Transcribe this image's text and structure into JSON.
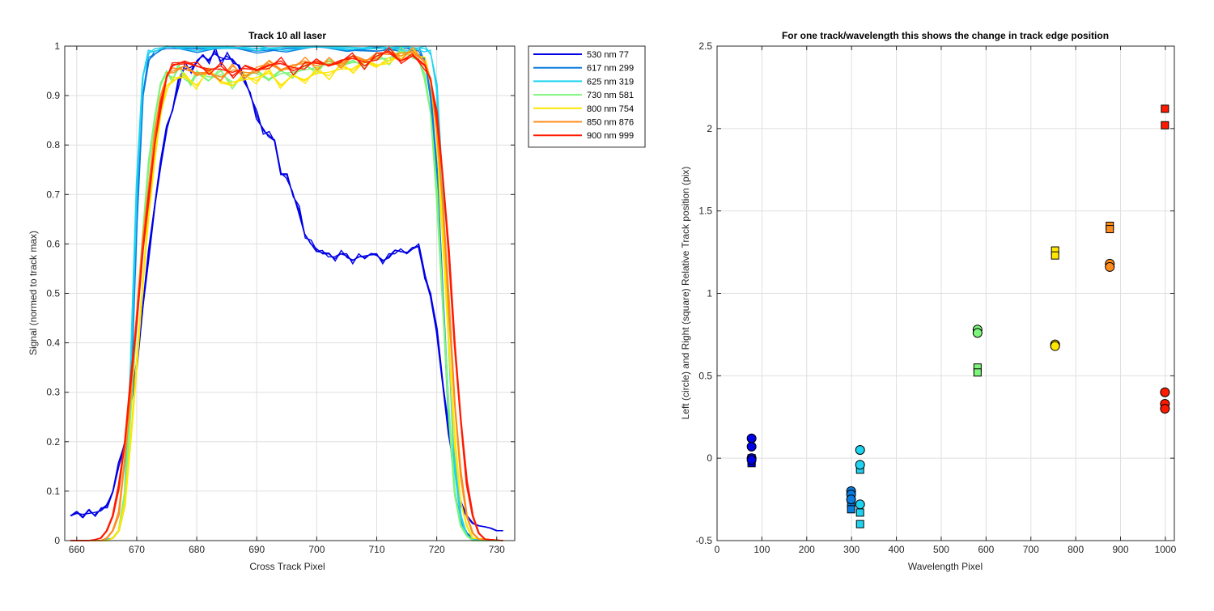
{
  "chart_data": [
    {
      "type": "line",
      "title": "Track 10  all laser",
      "xlabel": "Cross Track Pixel",
      "ylabel": "Signal (normed to track max)",
      "xlim": [
        658,
        733
      ],
      "ylim": [
        0,
        1
      ],
      "xticks": [
        660,
        670,
        680,
        690,
        700,
        710,
        720,
        730
      ],
      "yticks": [
        0,
        0.1,
        0.2,
        0.3,
        0.4,
        0.5,
        0.6,
        0.7,
        0.8,
        0.9,
        1
      ],
      "grid": true,
      "legend_position": "outside-top-right",
      "series": [
        {
          "name": "530 nm 77",
          "color": "#0000e6",
          "x": [
            659,
            660,
            661,
            662,
            663,
            664,
            665,
            666,
            667,
            668,
            669,
            670,
            671,
            672,
            673,
            674,
            675,
            676,
            677,
            678,
            679,
            680,
            681,
            682,
            683,
            684,
            685,
            686,
            687,
            688,
            689,
            690,
            691,
            692,
            693,
            694,
            695,
            696,
            697,
            698,
            699,
            700,
            701,
            702,
            703,
            704,
            705,
            706,
            707,
            708,
            709,
            710,
            711,
            712,
            713,
            714,
            715,
            716,
            717,
            718,
            719,
            720,
            721,
            722,
            723,
            724,
            725,
            726,
            727,
            728,
            729,
            730,
            731
          ],
          "y": [
            0.05,
            0.055,
            0.053,
            0.055,
            0.057,
            0.06,
            0.07,
            0.1,
            0.15,
            0.2,
            0.27,
            0.36,
            0.47,
            0.58,
            0.68,
            0.76,
            0.84,
            0.87,
            0.93,
            0.96,
            0.95,
            0.97,
            0.98,
            0.97,
            0.99,
            0.97,
            0.98,
            0.97,
            0.96,
            0.93,
            0.9,
            0.86,
            0.83,
            0.82,
            0.81,
            0.74,
            0.74,
            0.7,
            0.67,
            0.62,
            0.6,
            0.59,
            0.58,
            0.58,
            0.57,
            0.58,
            0.58,
            0.56,
            0.58,
            0.57,
            0.58,
            0.58,
            0.56,
            0.58,
            0.58,
            0.59,
            0.58,
            0.59,
            0.6,
            0.53,
            0.5,
            0.42,
            0.32,
            0.22,
            0.14,
            0.08,
            0.05,
            0.035,
            0.03,
            0.028,
            0.025,
            0.02,
            0.02
          ]
        },
        {
          "name": "617 nm 299",
          "color": "#0a7bdf",
          "x": [
            659,
            664,
            666,
            667,
            668,
            669,
            670,
            671,
            672,
            673,
            675,
            680,
            685,
            690,
            695,
            700,
            705,
            710,
            715,
            717,
            718,
            719,
            720,
            721,
            722,
            723,
            724,
            725,
            726,
            727,
            731
          ],
          "y": [
            0,
            0,
            0.005,
            0.02,
            0.08,
            0.3,
            0.65,
            0.9,
            0.97,
            0.99,
            0.995,
            0.995,
            0.998,
            0.99,
            0.995,
            0.998,
            0.995,
            0.99,
            0.995,
            0.99,
            0.97,
            0.9,
            0.75,
            0.5,
            0.25,
            0.1,
            0.04,
            0.015,
            0.005,
            0,
            0
          ]
        },
        {
          "name": "625 nm 319",
          "color": "#1fd3f0",
          "x": [
            659,
            664,
            666,
            667,
            668,
            669,
            670,
            671,
            672,
            673,
            675,
            680,
            685,
            690,
            695,
            700,
            705,
            710,
            715,
            718,
            719,
            720,
            721,
            722,
            723,
            724,
            725,
            726,
            727,
            731
          ],
          "y": [
            0,
            0,
            0.005,
            0.02,
            0.1,
            0.35,
            0.72,
            0.94,
            0.985,
            0.995,
            0.998,
            0.998,
            0.998,
            0.995,
            0.998,
            0.998,
            0.998,
            0.995,
            0.998,
            0.995,
            0.985,
            0.92,
            0.7,
            0.4,
            0.15,
            0.05,
            0.01,
            0.003,
            0,
            0
          ]
        },
        {
          "name": "730 nm 581",
          "color": "#7df47a",
          "x": [
            659,
            665,
            666,
            667,
            668,
            669,
            670,
            671,
            672,
            673,
            674,
            675,
            676,
            677,
            678,
            679,
            680,
            682,
            684,
            686,
            688,
            690,
            692,
            694,
            696,
            698,
            700,
            702,
            704,
            706,
            708,
            710,
            712,
            714,
            716,
            717,
            718,
            719,
            720,
            721,
            722,
            723,
            724,
            725,
            726,
            731
          ],
          "y": [
            0,
            0,
            0.005,
            0.02,
            0.1,
            0.26,
            0.45,
            0.62,
            0.76,
            0.86,
            0.92,
            0.95,
            0.93,
            0.96,
            0.94,
            0.92,
            0.95,
            0.93,
            0.95,
            0.92,
            0.94,
            0.95,
            0.93,
            0.95,
            0.94,
            0.96,
            0.95,
            0.97,
            0.96,
            0.97,
            0.96,
            0.98,
            0.97,
            0.99,
            0.98,
            0.97,
            0.94,
            0.86,
            0.7,
            0.48,
            0.26,
            0.1,
            0.03,
            0.01,
            0,
            0
          ]
        },
        {
          "name": "800 nm 754",
          "color": "#ffe600",
          "x": [
            659,
            665,
            666,
            667,
            668,
            669,
            670,
            671,
            672,
            673,
            674,
            675,
            676,
            678,
            680,
            682,
            684,
            686,
            688,
            690,
            692,
            694,
            696,
            698,
            700,
            702,
            704,
            706,
            708,
            710,
            712,
            714,
            716,
            718,
            719,
            720,
            721,
            722,
            723,
            724,
            725,
            726,
            731
          ],
          "y": [
            0,
            0,
            0.005,
            0.02,
            0.08,
            0.2,
            0.36,
            0.52,
            0.66,
            0.78,
            0.86,
            0.92,
            0.93,
            0.94,
            0.92,
            0.95,
            0.93,
            0.92,
            0.94,
            0.93,
            0.95,
            0.92,
            0.94,
            0.93,
            0.95,
            0.94,
            0.96,
            0.95,
            0.97,
            0.96,
            0.97,
            0.98,
            0.99,
            0.97,
            0.93,
            0.82,
            0.62,
            0.4,
            0.2,
            0.08,
            0.03,
            0.005,
            0
          ]
        },
        {
          "name": "850 nm 876",
          "color": "#ff8c1a",
          "x": [
            659,
            664,
            665,
            666,
            667,
            668,
            669,
            670,
            671,
            672,
            673,
            674,
            675,
            676,
            678,
            680,
            682,
            684,
            686,
            688,
            690,
            692,
            694,
            696,
            698,
            700,
            702,
            704,
            706,
            708,
            710,
            712,
            714,
            716,
            718,
            719,
            720,
            721,
            722,
            723,
            724,
            725,
            726,
            727,
            731
          ],
          "y": [
            0,
            0,
            0.005,
            0.02,
            0.06,
            0.16,
            0.3,
            0.46,
            0.6,
            0.72,
            0.82,
            0.9,
            0.94,
            0.95,
            0.96,
            0.94,
            0.95,
            0.93,
            0.96,
            0.94,
            0.95,
            0.97,
            0.95,
            0.96,
            0.97,
            0.96,
            0.97,
            0.96,
            0.98,
            0.97,
            0.98,
            0.99,
            0.98,
            0.99,
            0.97,
            0.93,
            0.84,
            0.68,
            0.48,
            0.28,
            0.13,
            0.05,
            0.015,
            0.003,
            0
          ]
        },
        {
          "name": "900 nm 999",
          "color": "#ff1a00",
          "x": [
            659,
            662,
            663,
            664,
            665,
            666,
            667,
            668,
            669,
            670,
            671,
            672,
            673,
            674,
            675,
            676,
            678,
            680,
            682,
            684,
            686,
            688,
            690,
            692,
            694,
            696,
            698,
            700,
            702,
            704,
            706,
            708,
            710,
            712,
            714,
            716,
            718,
            719,
            720,
            721,
            722,
            723,
            724,
            725,
            726,
            727,
            728,
            731
          ],
          "y": [
            0,
            0,
            0.002,
            0.005,
            0.02,
            0.05,
            0.11,
            0.2,
            0.32,
            0.45,
            0.58,
            0.7,
            0.8,
            0.88,
            0.94,
            0.96,
            0.97,
            0.96,
            0.95,
            0.96,
            0.94,
            0.96,
            0.95,
            0.96,
            0.97,
            0.95,
            0.96,
            0.97,
            0.96,
            0.97,
            0.98,
            0.96,
            0.98,
            0.99,
            0.97,
            0.98,
            0.96,
            0.93,
            0.86,
            0.74,
            0.58,
            0.4,
            0.24,
            0.12,
            0.05,
            0.015,
            0.003,
            0
          ]
        }
      ]
    },
    {
      "type": "scatter",
      "title": "For one track/wavelength this shows the change in track edge position",
      "xlabel": "Wavelength Pixel",
      "ylabel": "Left (circle) and Right (square) Relative Track position (pix)",
      "xlim": [
        0,
        1020
      ],
      "ylim": [
        -0.5,
        2.5
      ],
      "xticks": [
        0,
        100,
        200,
        300,
        400,
        500,
        600,
        700,
        800,
        900,
        1000
      ],
      "yticks": [
        -0.5,
        0,
        0.5,
        1,
        1.5,
        2,
        2.5
      ],
      "grid": true,
      "series": [
        {
          "name": "530 nm 77",
          "color": "#0000e6",
          "x": 77,
          "left_circle": [
            0.12,
            0.07,
            0.0,
            -0.01
          ],
          "right_square": [
            0.0,
            -0.02,
            -0.03
          ]
        },
        {
          "name": "617 nm 299",
          "color": "#0a7bdf",
          "x": 299,
          "left_circle": [
            -0.2,
            -0.22,
            -0.25
          ],
          "right_square": [
            -0.24,
            -0.28,
            -0.31
          ]
        },
        {
          "name": "625 nm 319",
          "color": "#1fd3f0",
          "x": 319,
          "left_circle": [
            0.05,
            -0.04,
            -0.28
          ],
          "right_square": [
            -0.07,
            -0.33,
            -0.4
          ]
        },
        {
          "name": "730 nm 581",
          "color": "#7df47a",
          "x": 581,
          "left_circle": [
            0.78,
            0.76
          ],
          "right_square": [
            0.55,
            0.52
          ]
        },
        {
          "name": "800 nm 754",
          "color": "#ffe600",
          "x": 754,
          "left_circle": [
            0.69,
            0.68
          ],
          "right_square": [
            1.26,
            1.23
          ]
        },
        {
          "name": "850 nm 876",
          "color": "#ff8c1a",
          "x": 876,
          "left_circle": [
            1.18,
            1.16
          ],
          "right_square": [
            1.41,
            1.39
          ]
        },
        {
          "name": "900 nm 999",
          "color": "#ff1a00",
          "x": 999,
          "left_circle": [
            0.4,
            0.33,
            0.3
          ],
          "right_square": [
            2.12,
            2.02
          ]
        }
      ]
    }
  ]
}
